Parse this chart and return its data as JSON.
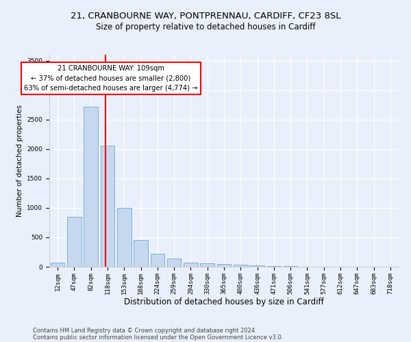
{
  "title1": "21, CRANBOURNE WAY, PONTPRENNAU, CARDIFF, CF23 8SL",
  "title2": "Size of property relative to detached houses in Cardiff",
  "xlabel": "Distribution of detached houses by size in Cardiff",
  "ylabel": "Number of detached properties",
  "categories": [
    "12sqm",
    "47sqm",
    "82sqm",
    "118sqm",
    "153sqm",
    "188sqm",
    "224sqm",
    "259sqm",
    "294sqm",
    "330sqm",
    "365sqm",
    "400sqm",
    "436sqm",
    "471sqm",
    "506sqm",
    "541sqm",
    "577sqm",
    "612sqm",
    "647sqm",
    "683sqm",
    "718sqm"
  ],
  "values": [
    65,
    850,
    2720,
    2060,
    1000,
    455,
    225,
    145,
    65,
    55,
    45,
    30,
    20,
    15,
    10,
    5,
    5,
    5,
    3,
    3,
    3
  ],
  "bar_color": "#c5d8f0",
  "bar_edgecolor": "#7aafd4",
  "vline_x": 2.88,
  "vline_color": "red",
  "annotation_text": "21 CRANBOURNE WAY: 109sqm\n← 37% of detached houses are smaller (2,800)\n63% of semi-detached houses are larger (4,774) →",
  "annotation_box_color": "white",
  "annotation_box_edgecolor": "red",
  "ylim": [
    0,
    3600
  ],
  "yticks": [
    0,
    500,
    1000,
    1500,
    2000,
    2500,
    3000,
    3500
  ],
  "footer1": "Contains HM Land Registry data © Crown copyright and database right 2024.",
  "footer2": "Contains public sector information licensed under the Open Government Licence v3.0.",
  "background_color": "#eaf0fb",
  "plot_bg_color": "#eaf0fb",
  "title1_fontsize": 9.5,
  "title2_fontsize": 8.5,
  "xlabel_fontsize": 8.5,
  "ylabel_fontsize": 7.5,
  "tick_fontsize": 6.5,
  "footer_fontsize": 6.0
}
